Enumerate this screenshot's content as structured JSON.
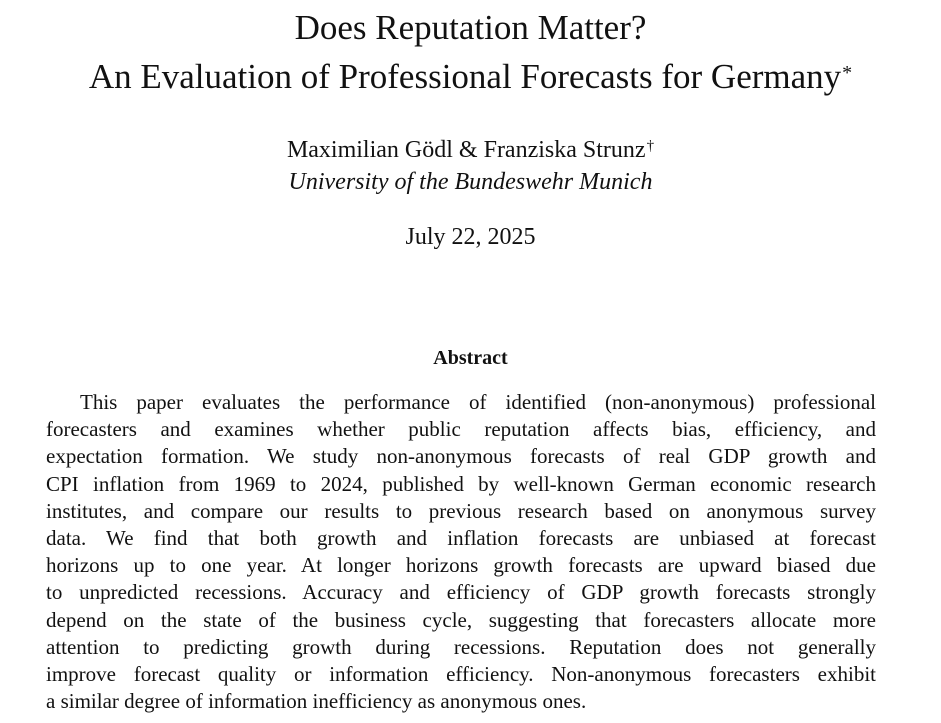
{
  "paper": {
    "title_line1": "Does Reputation Matter?",
    "title_line2": "An Evaluation of Professional Forecasts for Germany",
    "title_footnote_mark": "*",
    "authors": "Maximilian Gödl & Franziska Strunz",
    "authors_footnote_mark": "†",
    "affiliation": "University of the Bundeswehr Munich",
    "date": "July 22, 2025"
  },
  "abstract": {
    "heading": "Abstract",
    "lines": [
      "This paper evaluates the performance of identified (non-anonymous) professional",
      "forecasters and examines whether public reputation affects bias, efficiency, and",
      "expectation formation. We study non-anonymous forecasts of real GDP growth and",
      "CPI inflation from 1969 to 2024, published by well-known German economic research",
      "institutes, and compare our results to previous research based on anonymous survey",
      "data. We find that both growth and inflation forecasts are unbiased at forecast",
      "horizons up to one year. At longer horizons growth forecasts are upward biased due",
      "to unpredicted recessions. Accuracy and efficiency of GDP growth forecasts strongly",
      "depend on the state of the business cycle, suggesting that forecasters allocate more",
      "attention to predicting growth during recessions. Reputation does not generally",
      "improve forecast quality or information efficiency. Non-anonymous forecasters exhibit",
      "a similar degree of information inefficiency as anonymous ones."
    ]
  }
}
